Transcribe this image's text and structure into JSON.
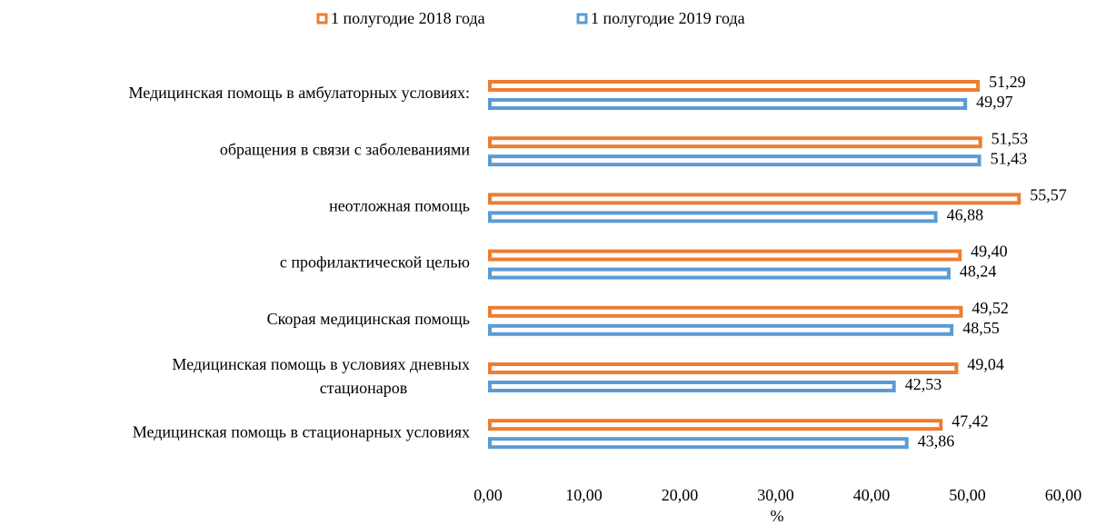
{
  "chart_data": {
    "type": "bar",
    "orientation": "horizontal",
    "categories": [
      "Медицинская помощь в амбулаторных условиях:",
      "обращения в связи с заболеваниями",
      "неотложная помощь",
      "с профилактической целью",
      "Скорая медицинская помощь",
      "Медицинская помощь в условиях дневных стационаров",
      "Медицинская помощь в стационарных условиях"
    ],
    "series": [
      {
        "name": "1 полугодие 2018 года",
        "color": "#ed7d31",
        "values": [
          51.29,
          51.53,
          55.57,
          49.4,
          49.52,
          49.04,
          47.42
        ],
        "value_labels": [
          "51,29",
          "51,53",
          "55,57",
          "49,40",
          "49,52",
          "49,04",
          "47,42"
        ]
      },
      {
        "name": "1 полугодие 2019 года",
        "color": "#5b9bd5",
        "values": [
          49.97,
          51.43,
          46.88,
          48.24,
          48.55,
          42.53,
          43.86
        ],
        "value_labels": [
          "49,97",
          "51,43",
          "46,88",
          "48,24",
          "48,55",
          "42,53",
          "43,86"
        ]
      }
    ],
    "xlabel": "%",
    "xlim": [
      0,
      60
    ],
    "xticks": [
      {
        "value": 0,
        "label": "0,00"
      },
      {
        "value": 10,
        "label": "10,00"
      },
      {
        "value": 20,
        "label": "20,00"
      },
      {
        "value": 30,
        "label": "30,00"
      },
      {
        "value": 40,
        "label": "40,00"
      },
      {
        "value": 50,
        "label": "50,00"
      },
      {
        "value": 60,
        "label": "60,00"
      }
    ],
    "legend": "top"
  }
}
